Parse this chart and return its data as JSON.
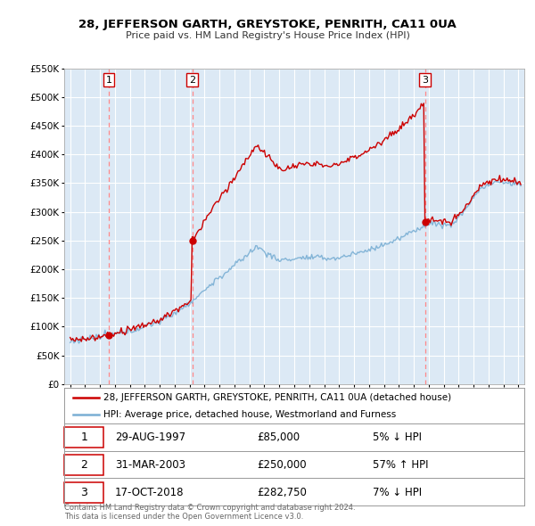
{
  "title": "28, JEFFERSON GARTH, GREYSTOKE, PENRITH, CA11 0UA",
  "subtitle": "Price paid vs. HM Land Registry's House Price Index (HPI)",
  "background_color": "#ffffff",
  "plot_bg_color": "#dce9f5",
  "grid_color": "#ffffff",
  "sales": [
    {
      "num": 1,
      "year": 1997,
      "month": 8,
      "price": 85000,
      "label": "29-AUG-1997",
      "price_str": "£85,000",
      "pct": "5% ↓ HPI"
    },
    {
      "num": 2,
      "year": 2003,
      "month": 3,
      "price": 250000,
      "label": "31-MAR-2003",
      "price_str": "£250,000",
      "pct": "57% ↑ HPI"
    },
    {
      "num": 3,
      "year": 2018,
      "month": 10,
      "price": 282750,
      "label": "17-OCT-2018",
      "price_str": "£282,750",
      "pct": "7% ↓ HPI"
    }
  ],
  "legend_address": "28, JEFFERSON GARTH, GREYSTOKE, PENRITH, CA11 0UA (detached house)",
  "legend_hpi": "HPI: Average price, detached house, Westmorland and Furness",
  "footer1": "Contains HM Land Registry data © Crown copyright and database right 2024.",
  "footer2": "This data is licensed under the Open Government Licence v3.0.",
  "ylim": [
    0,
    550000
  ],
  "yticks": [
    0,
    50000,
    100000,
    150000,
    200000,
    250000,
    300000,
    350000,
    400000,
    450000,
    500000,
    550000
  ],
  "red_line_color": "#cc0000",
  "blue_line_color": "#7aafd4",
  "dashed_color": "#ff8888",
  "marker_color": "#cc0000",
  "box_edge_color": "#cc0000"
}
